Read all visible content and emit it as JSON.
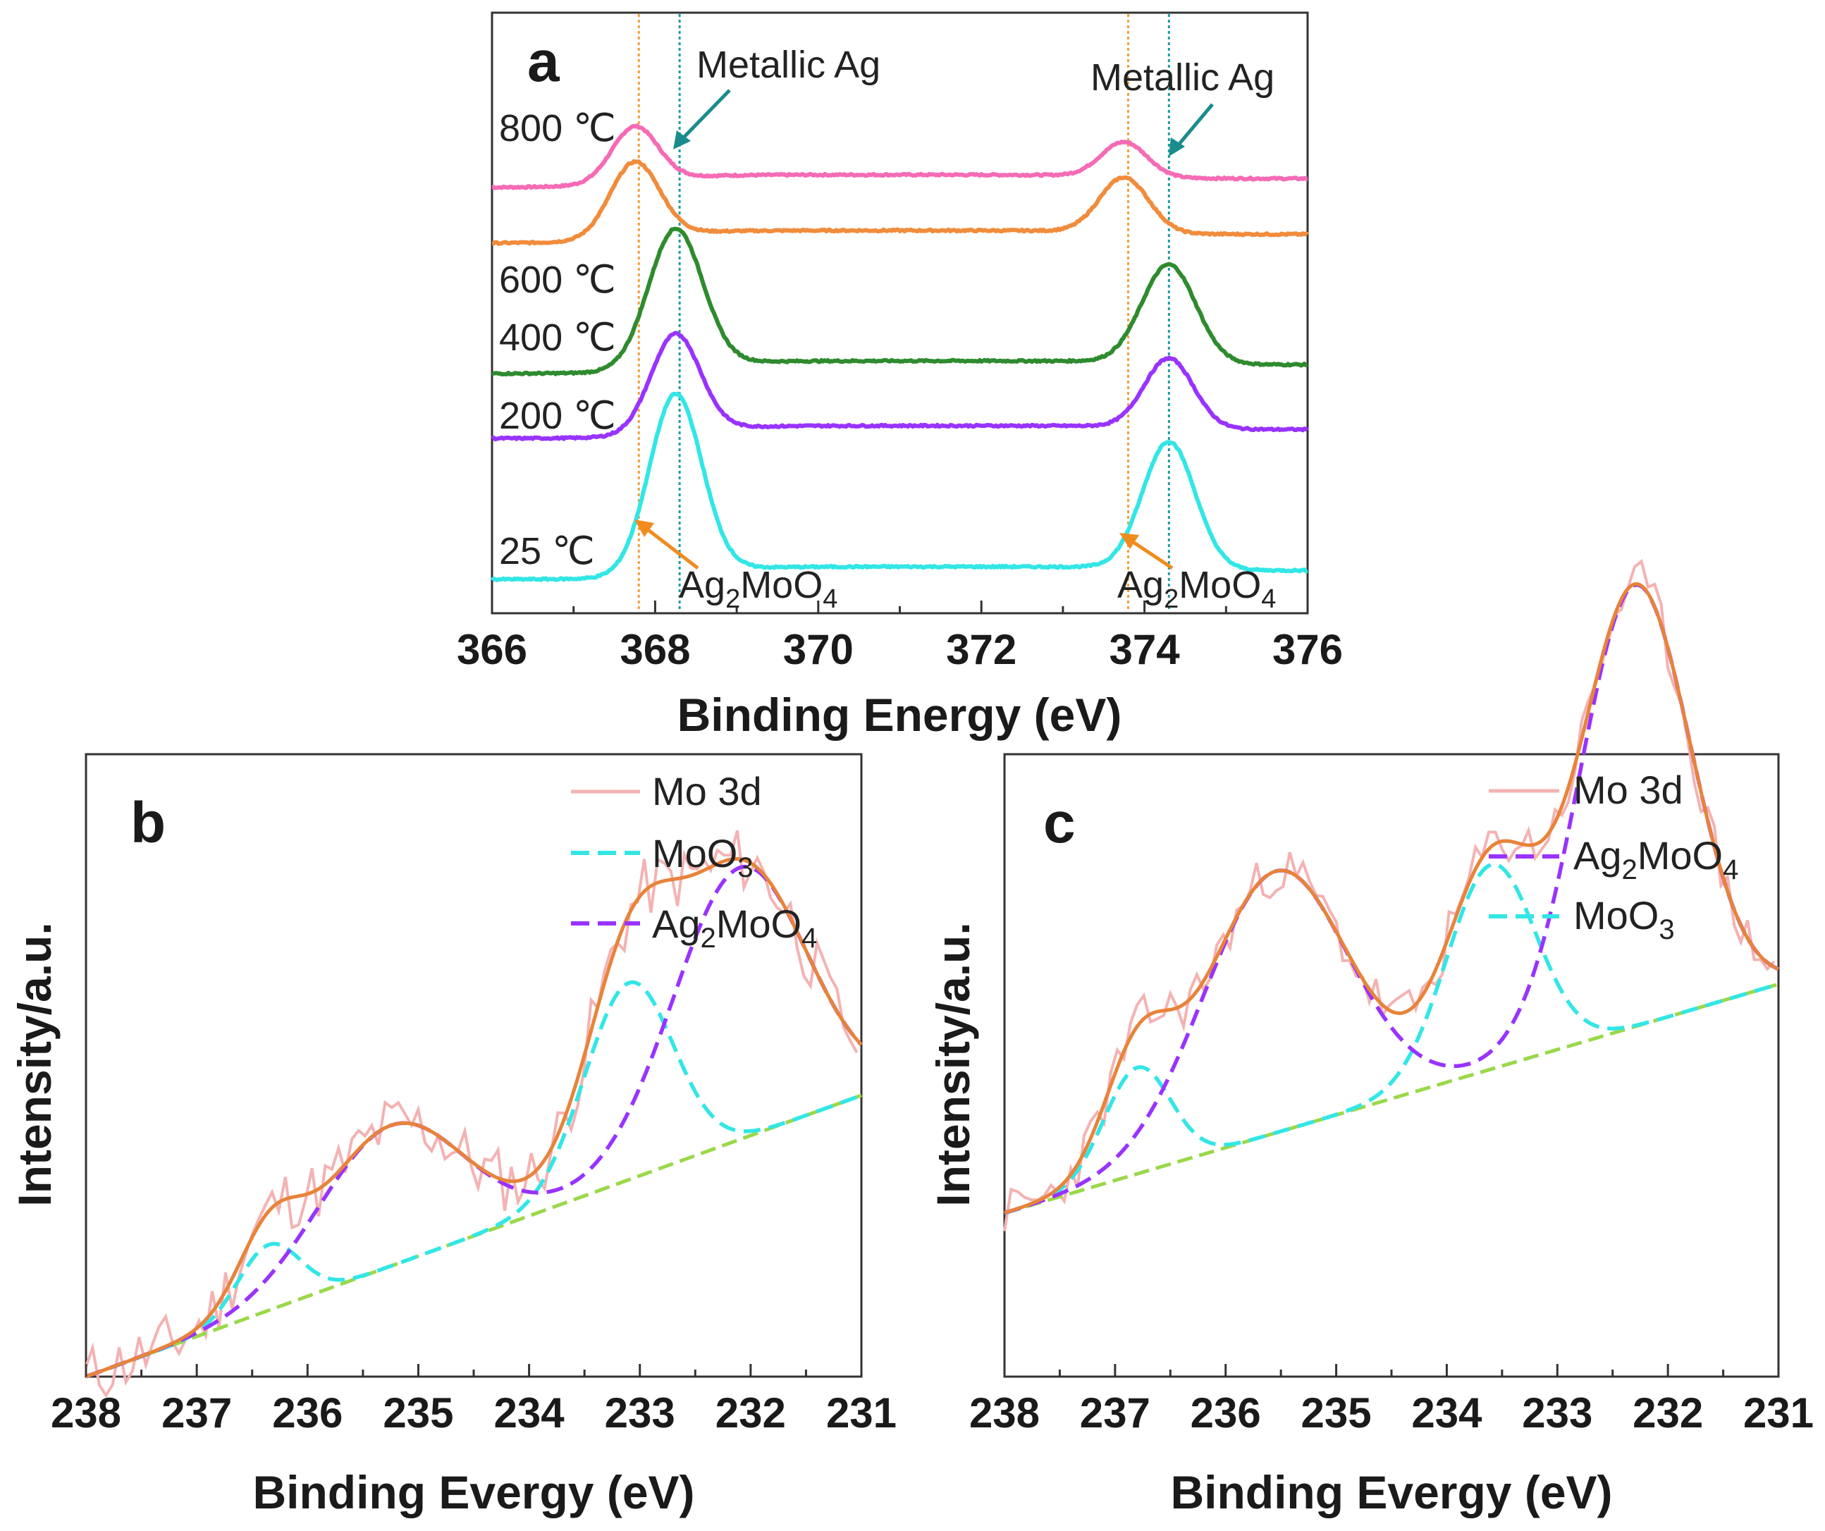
{
  "colors": {
    "cyan": "#33e6e6",
    "purple": "#9933ff",
    "green": "#2e8b2e",
    "orange": "#f08c3c",
    "pink": "#f56bb5",
    "teal_arrow": "#1a8c8c",
    "orange_arrow": "#f08c1e",
    "raw": "#f4b2b2",
    "fit": "#e8833a",
    "bg_green": "#9ad84a"
  },
  "chart_data": [
    {
      "panel_label": "a",
      "type": "line",
      "xlabel": "Binding Energy (eV)",
      "xlim": [
        366,
        376
      ],
      "xticks": [
        "366",
        "368",
        "370",
        "372",
        "374",
        "376"
      ],
      "ylabel": "",
      "ref_lines": [
        {
          "x": 367.8,
          "color": "orange",
          "label": "Ag2MoO4"
        },
        {
          "x": 368.3,
          "color": "teal",
          "label": "Metallic Ag"
        },
        {
          "x": 373.8,
          "color": "orange",
          "label": "Ag2MoO4"
        },
        {
          "x": 374.3,
          "color": "teal",
          "label": "Metallic Ag"
        }
      ],
      "annotations": {
        "metallic_left": "Metallic Ag",
        "metallic_right": "Metallic Ag",
        "ag2moo4_left": {
          "base": "Ag",
          "sub1": "2",
          "mid": "MoO",
          "sub2": "4"
        },
        "ag2moo4_right": {
          "base": "Ag",
          "sub1": "2",
          "mid": "MoO",
          "sub2": "4"
        }
      },
      "series": [
        {
          "name": "800 ℃",
          "color": "pink",
          "offset": 4,
          "peaks": [
            {
              "x0": 367.75,
              "h": 0.95,
              "w": 0.28
            },
            {
              "x0": 373.75,
              "h": 0.6,
              "w": 0.28
            }
          ]
        },
        {
          "name": "600 ℃",
          "color": "orange",
          "offset": 3,
          "peaks": [
            {
              "x0": 367.75,
              "h": 1.3,
              "w": 0.3
            },
            {
              "x0": 373.75,
              "h": 0.95,
              "w": 0.3
            }
          ]
        },
        {
          "name": "400 ℃",
          "color": "green",
          "offset": 2,
          "peaks": [
            {
              "x0": 368.25,
              "h": 2.4,
              "w": 0.33
            },
            {
              "x0": 374.3,
              "h": 1.7,
              "w": 0.33
            }
          ]
        },
        {
          "name": "200 ℃",
          "color": "purple",
          "offset": 1,
          "peaks": [
            {
              "x0": 368.25,
              "h": 1.7,
              "w": 0.3
            },
            {
              "x0": 374.3,
              "h": 1.2,
              "w": 0.3
            }
          ]
        },
        {
          "name": "25 ℃",
          "color": "cyan",
          "offset": 0,
          "peaks": [
            {
              "x0": 368.25,
              "h": 3.1,
              "w": 0.32
            },
            {
              "x0": 374.3,
              "h": 2.2,
              "w": 0.32
            }
          ]
        }
      ]
    },
    {
      "panel_label": "b",
      "type": "line",
      "xlabel": "Binding Evergy (eV)",
      "ylabel": "Intensity/a.u.",
      "xlim": [
        238,
        231
      ],
      "xticks": [
        "238",
        "237",
        "236",
        "235",
        "234",
        "233",
        "232",
        "231"
      ],
      "legend": [
        {
          "label": "Mo 3d",
          "style": "raw"
        },
        {
          "label": "MoO",
          "sub": "3",
          "style": "cyan-dash"
        },
        {
          "label": "Ag",
          "sub": "2",
          "label2": "MoO",
          "sub2": "4",
          "style": "purple-dash"
        }
      ],
      "background": {
        "y_at_238": 0.0,
        "y_at_231": 0.3
      },
      "components": {
        "MoO3": [
          {
            "x0": 236.35,
            "h": 0.07,
            "w": 0.28
          },
          {
            "x0": 233.1,
            "h": 0.21,
            "w": 0.4
          }
        ],
        "Ag2MoO4": [
          {
            "x0": 235.25,
            "h": 0.15,
            "w": 0.65
          },
          {
            "x0": 232.1,
            "h": 0.29,
            "w": 0.6
          }
        ]
      }
    },
    {
      "panel_label": "c",
      "type": "line",
      "xlabel": "Binding Evergy (eV)",
      "ylabel": "Intensity/a.u.",
      "xlim": [
        238,
        231
      ],
      "xticks": [
        "238",
        "237",
        "236",
        "235",
        "234",
        "233",
        "232",
        "231"
      ],
      "legend": [
        {
          "label": "Mo 3d",
          "style": "raw"
        },
        {
          "label": "Ag",
          "sub": "2",
          "label2": "MoO",
          "sub2": "4",
          "style": "purple-dash"
        },
        {
          "label": "MoO",
          "sub": "3",
          "style": "cyan-dash"
        }
      ],
      "background": {
        "y_at_238": 0.2,
        "y_at_231": 0.48
      },
      "components": {
        "MoO3": [
          {
            "x0": 236.8,
            "h": 0.13,
            "w": 0.3
          },
          {
            "x0": 233.6,
            "h": 0.25,
            "w": 0.4
          }
        ],
        "Ag2MoO4": [
          {
            "x0": 235.55,
            "h": 0.32,
            "w": 0.65
          },
          {
            "x0": 232.3,
            "h": 0.54,
            "w": 0.5
          }
        ]
      }
    }
  ]
}
